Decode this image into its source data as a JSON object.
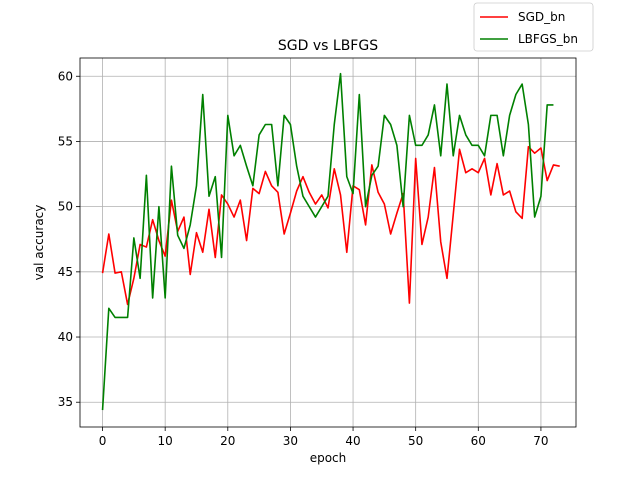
{
  "chart_data": {
    "type": "line",
    "title": "SGD vs LBFGS",
    "xlabel": "epoch",
    "ylabel": "val accuracy",
    "xlim": [
      -3.6,
      75.6
    ],
    "ylim": [
      33.1,
      61.4
    ],
    "xticks": [
      0,
      10,
      20,
      30,
      40,
      50,
      60,
      70
    ],
    "yticks": [
      35,
      40,
      45,
      50,
      55,
      60
    ],
    "grid": true,
    "legend": "upper right, outside top",
    "series": [
      {
        "name": "SGD_bn",
        "color": "#ff0000",
        "x": [
          0,
          1,
          2,
          3,
          4,
          5,
          6,
          7,
          8,
          9,
          10,
          11,
          12,
          13,
          14,
          15,
          16,
          17,
          18,
          19,
          20,
          21,
          22,
          23,
          24,
          25,
          26,
          27,
          28,
          29,
          30,
          31,
          32,
          33,
          34,
          35,
          36,
          37,
          38,
          39,
          40,
          41,
          42,
          43,
          44,
          45,
          46,
          47,
          48,
          49,
          50,
          51,
          52,
          53,
          54,
          55,
          56,
          57,
          58,
          59,
          60,
          61,
          62,
          63,
          64,
          65,
          66,
          67,
          68,
          69,
          70,
          71,
          72,
          73
        ],
        "values": [
          44.9,
          47.9,
          44.9,
          45.0,
          42.5,
          44.5,
          47.1,
          46.9,
          49.0,
          47.4,
          46.2,
          50.5,
          48.1,
          49.2,
          44.8,
          48.0,
          46.5,
          49.8,
          46.1,
          50.9,
          50.2,
          49.2,
          50.5,
          47.4,
          51.4,
          51.0,
          52.7,
          51.6,
          51.1,
          47.9,
          49.5,
          51.2,
          52.3,
          51.1,
          50.2,
          50.9,
          49.9,
          52.9,
          50.9,
          46.5,
          51.6,
          51.3,
          48.6,
          53.2,
          51.1,
          50.2,
          47.9,
          49.5,
          51.0,
          42.6,
          53.7,
          47.1,
          49.2,
          53.0,
          47.3,
          44.5,
          49.4,
          54.4,
          52.6,
          52.9,
          52.6,
          53.7,
          50.9,
          53.3,
          50.9,
          51.2,
          49.6,
          49.1,
          54.6,
          54.1,
          54.5,
          52.0,
          53.2,
          53.1
        ]
      },
      {
        "name": "LBFGS_bn",
        "color": "#008000",
        "x": [
          0,
          1,
          2,
          3,
          4,
          5,
          6,
          7,
          8,
          9,
          10,
          11,
          12,
          13,
          14,
          15,
          16,
          17,
          18,
          19,
          20,
          21,
          22,
          23,
          24,
          25,
          26,
          27,
          28,
          29,
          30,
          31,
          32,
          33,
          34,
          35,
          36,
          37,
          38,
          39,
          40,
          41,
          42,
          43,
          44,
          45,
          46,
          47,
          48,
          49,
          50,
          51,
          52,
          53,
          54,
          55,
          56,
          57,
          58,
          59,
          60,
          61,
          62,
          63,
          64,
          65,
          66,
          67,
          68,
          69,
          70,
          71,
          72
        ],
        "values": [
          34.4,
          42.2,
          41.5,
          41.5,
          41.5,
          47.6,
          44.5,
          52.4,
          43.0,
          50.0,
          43.0,
          53.1,
          47.8,
          46.8,
          48.6,
          51.6,
          58.6,
          50.8,
          52.3,
          46.1,
          57.0,
          53.9,
          54.7,
          53.1,
          51.6,
          55.5,
          56.3,
          56.3,
          51.6,
          57.0,
          56.3,
          53.1,
          50.8,
          50.0,
          49.2,
          50.0,
          50.8,
          56.3,
          60.2,
          52.3,
          51.0,
          58.6,
          50.0,
          52.4,
          53.1,
          57.0,
          56.3,
          54.7,
          50.0,
          57.0,
          54.7,
          54.7,
          55.5,
          57.8,
          53.9,
          59.4,
          53.9,
          57.0,
          55.5,
          54.7,
          54.7,
          53.9,
          57.0,
          57.0,
          53.9,
          57.0,
          58.6,
          59.4,
          56.3,
          49.2,
          50.8,
          57.8,
          57.8
        ]
      }
    ]
  }
}
